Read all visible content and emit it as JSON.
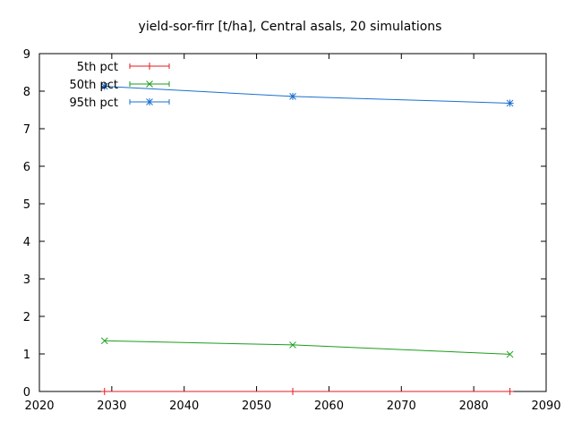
{
  "chart_data": {
    "type": "line",
    "title": "yield-sor-firr [t/ha], Central asals, 20 simulations",
    "xlabel": "",
    "ylabel": "",
    "xlim": [
      2020,
      2090
    ],
    "ylim": [
      0,
      9
    ],
    "xticks": [
      2020,
      2030,
      2040,
      2050,
      2060,
      2070,
      2080,
      2090
    ],
    "yticks": [
      0,
      1,
      2,
      3,
      4,
      5,
      6,
      7,
      8,
      9
    ],
    "grid": false,
    "legend_position": "top-left",
    "x": [
      2029,
      2055,
      2085
    ],
    "series": [
      {
        "name": "5th pct",
        "color": "#e41a1c",
        "marker": "plus",
        "values": [
          0,
          0,
          0
        ]
      },
      {
        "name": "50th pct",
        "color": "#1a9e1a",
        "marker": "cross",
        "values": [
          1.35,
          1.24,
          0.99
        ]
      },
      {
        "name": "95th pct",
        "color": "#1a6fcf",
        "marker": "asterisk",
        "values": [
          8.13,
          7.86,
          7.68
        ]
      }
    ]
  }
}
